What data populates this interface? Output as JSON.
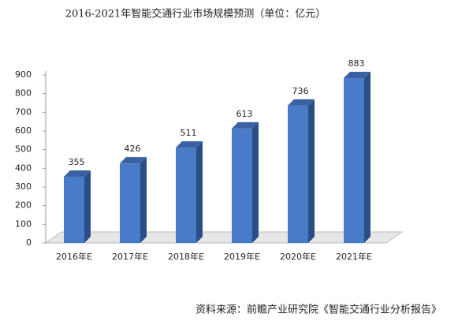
{
  "chart_data": {
    "type": "bar3d",
    "title": "2016-2021年智能交通行业市场规模预测（单位：亿元）",
    "categories": [
      "2016年E",
      "2017年E",
      "2018年E",
      "2019年E",
      "2020年E",
      "2021年E"
    ],
    "values": [
      355,
      426,
      511,
      613,
      736,
      883
    ],
    "color": "#4a7bc8",
    "ylim": [
      0,
      900
    ],
    "yticks": [
      0,
      100,
      200,
      300,
      400,
      500,
      600,
      700,
      800,
      900
    ],
    "source": "资料来源：前瞻产业研究院《智能交通行业分析报告》"
  }
}
